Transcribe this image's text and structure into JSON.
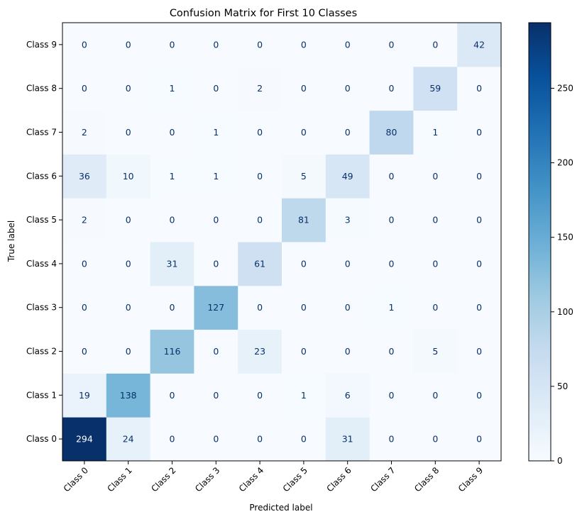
{
  "chart_data": {
    "type": "heatmap",
    "title": "Confusion Matrix for First 10 Classes",
    "xlabel": "Predicted label",
    "ylabel": "True label",
    "x_categories": [
      "Class 0",
      "Class 1",
      "Class 2",
      "Class 3",
      "Class 4",
      "Class 5",
      "Class 6",
      "Class 7",
      "Class 8",
      "Class 9"
    ],
    "y_categories": [
      "Class 0",
      "Class 1",
      "Class 2",
      "Class 3",
      "Class 4",
      "Class 5",
      "Class 6",
      "Class 7",
      "Class 8",
      "Class 9"
    ],
    "matrix": [
      [
        294,
        24,
        0,
        0,
        0,
        0,
        31,
        0,
        0,
        0
      ],
      [
        19,
        138,
        0,
        0,
        0,
        1,
        6,
        0,
        0,
        0
      ],
      [
        0,
        0,
        116,
        0,
        23,
        0,
        0,
        0,
        5,
        0
      ],
      [
        0,
        0,
        0,
        127,
        0,
        0,
        0,
        1,
        0,
        0
      ],
      [
        0,
        0,
        31,
        0,
        61,
        0,
        0,
        0,
        0,
        0
      ],
      [
        2,
        0,
        0,
        0,
        0,
        81,
        3,
        0,
        0,
        0
      ],
      [
        36,
        10,
        1,
        1,
        0,
        5,
        49,
        0,
        0,
        0
      ],
      [
        2,
        0,
        0,
        1,
        0,
        0,
        0,
        80,
        1,
        0
      ],
      [
        0,
        0,
        1,
        0,
        2,
        0,
        0,
        0,
        59,
        0
      ],
      [
        0,
        0,
        0,
        0,
        0,
        0,
        0,
        0,
        0,
        42
      ]
    ],
    "row_order": "bottom-to-top",
    "colorscale": "Blues",
    "color_range": [
      0,
      294
    ],
    "colorbar_ticks": [
      0,
      50,
      100,
      150,
      200,
      250
    ]
  }
}
